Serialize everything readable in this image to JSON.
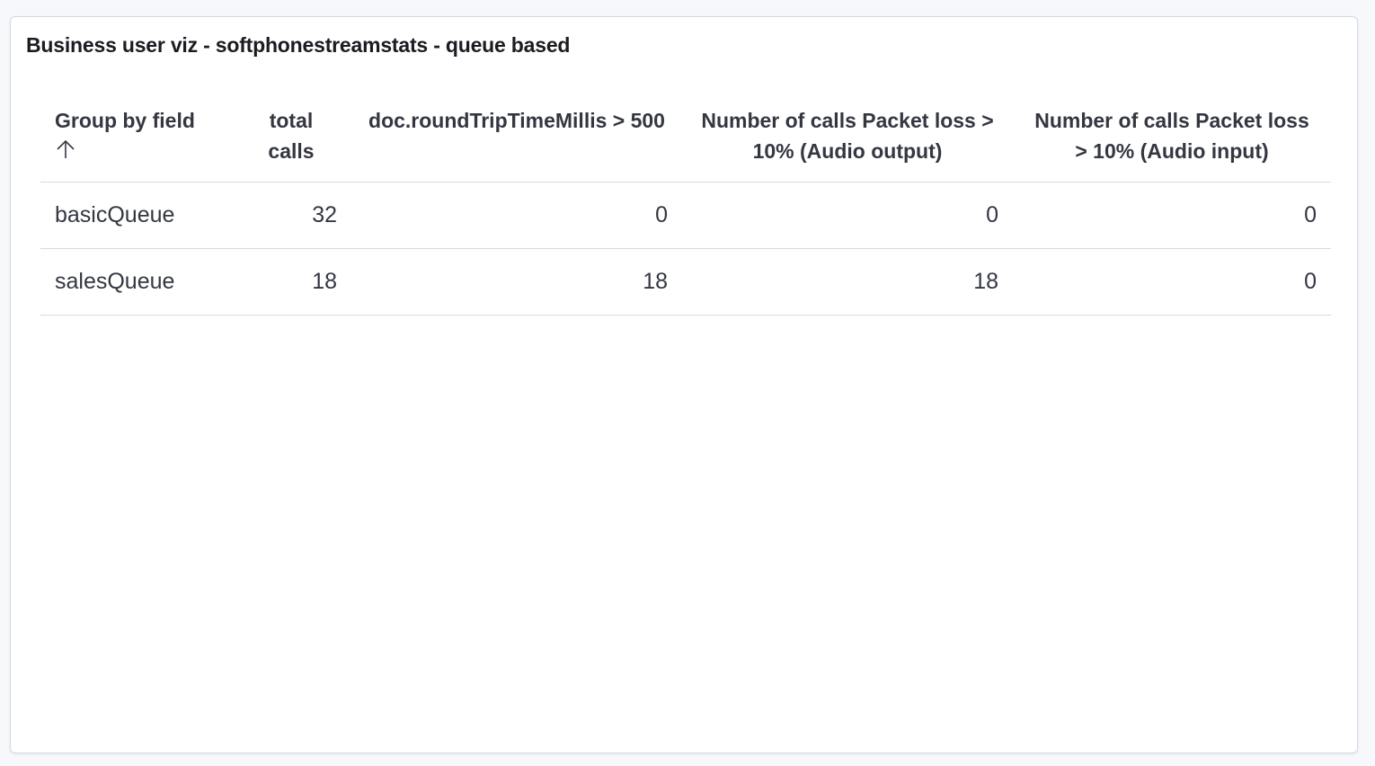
{
  "panel": {
    "title": "Business user viz - softphonestreamstats - queue based"
  },
  "table": {
    "headers": [
      "Group by field",
      "total calls",
      "doc.roundTripTimeMillis > 500",
      "Number of calls Packet loss > 10% (Audio output)",
      "Number of calls Packet loss > 10% (Audio input)"
    ],
    "sort": {
      "column": "Group by field",
      "direction": "ascending",
      "icon": "sort-ascending-arrow-icon"
    },
    "rows": [
      [
        "basicQueue",
        "32",
        "0",
        "0",
        "0"
      ],
      [
        "salesQueue",
        "18",
        "18",
        "18",
        "0"
      ]
    ]
  }
}
